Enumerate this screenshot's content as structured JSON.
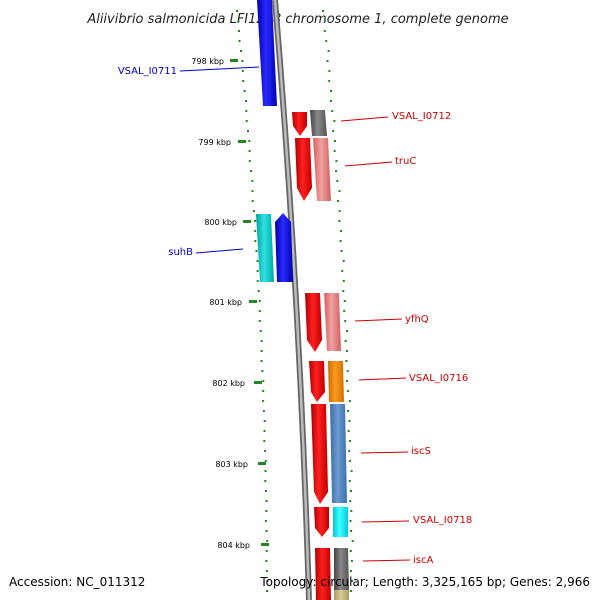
{
  "title": "Aliivibrio salmonicida LFI1238 chromosome 1, complete genome",
  "accession": "Accession: NC_011312",
  "topology": "Topology: circular; Length: 3,325,165 bp; Genes: 2,966",
  "ticks": [
    "798 kbp",
    "799 kbp",
    "800 kbp",
    "801 kbp",
    "802 kbp",
    "803 kbp",
    "804 kbp"
  ],
  "genes": [
    {
      "name": "VSAL_I0711",
      "strand": "reverse",
      "label_color": "#0000cc"
    },
    {
      "name": "VSAL_I0712",
      "strand": "forward",
      "label_color": "#cc0000"
    },
    {
      "name": "truC",
      "strand": "forward",
      "label_color": "#cc0000"
    },
    {
      "name": "suhB",
      "strand": "reverse",
      "label_color": "#0000cc"
    },
    {
      "name": "yfhQ",
      "strand": "forward",
      "label_color": "#cc0000"
    },
    {
      "name": "VSAL_I0716",
      "strand": "forward",
      "label_color": "#cc0000"
    },
    {
      "name": "iscS",
      "strand": "forward",
      "label_color": "#cc0000"
    },
    {
      "name": "VSAL_I0718",
      "strand": "forward",
      "label_color": "#cc0000"
    },
    {
      "name": "iscA",
      "strand": "forward",
      "label_color": "#cc0000"
    }
  ],
  "colors": {
    "forward_cds": "#ee0000",
    "reverse_cds": "#0000ee",
    "backbone": "#888888",
    "tick": "#228822",
    "gc_dots": "#228822"
  }
}
